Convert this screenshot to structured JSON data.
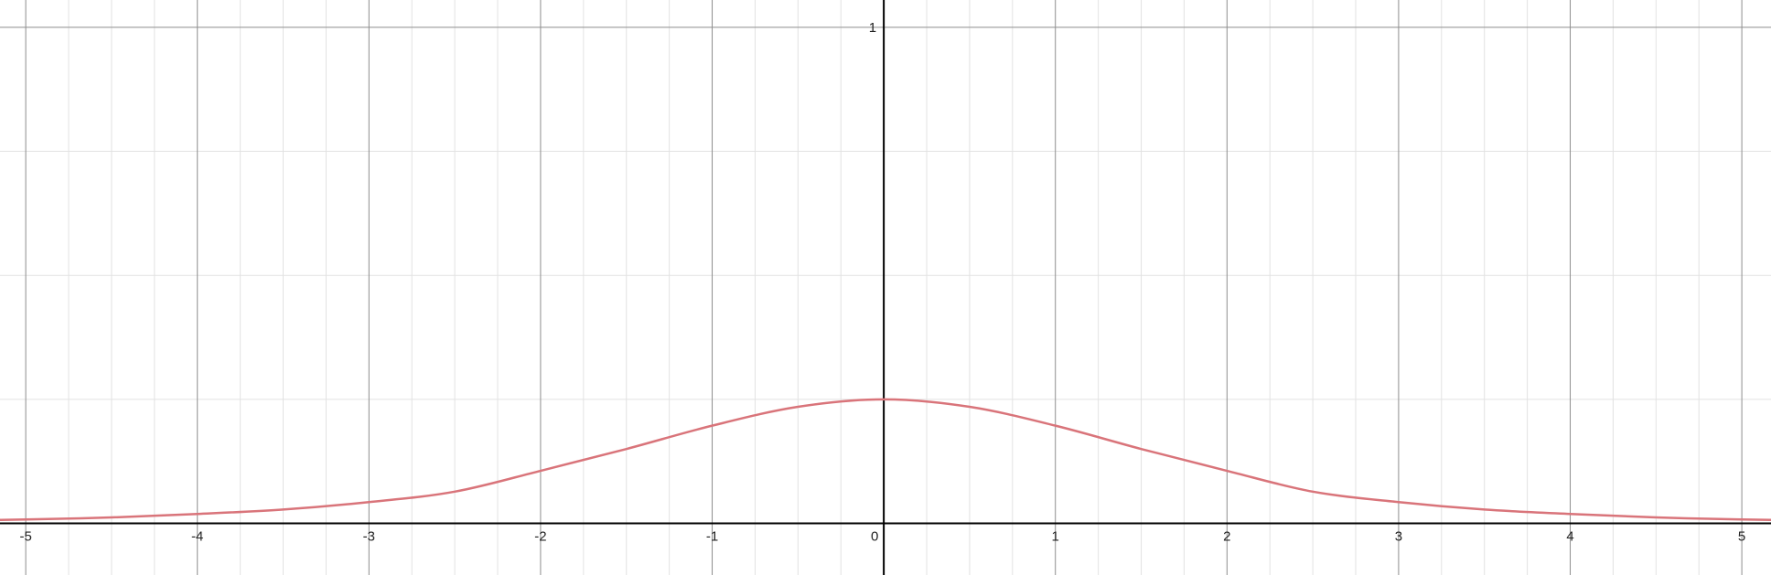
{
  "chart_data": {
    "type": "line",
    "xlim": [
      -5.15,
      5.17
    ],
    "ylim": [
      -0.104,
      1.055
    ],
    "grid": true,
    "minor_grid_x_step": 0.25,
    "minor_grid_y_step": 0.25,
    "major_grid_step": 1,
    "x_ticks": [
      -5,
      -4,
      -3,
      -2,
      -1,
      0,
      1,
      2,
      3,
      4,
      5
    ],
    "x_tick_labels": [
      "-5",
      "-4",
      "-3",
      "-2",
      "-1",
      "0",
      "1",
      "2",
      "3",
      "4",
      "5"
    ],
    "y_ticks": [
      1
    ],
    "y_tick_labels": [
      "1"
    ],
    "series": [
      {
        "color": "#d9747a",
        "x": [
          -5.15,
          -5,
          -4.5,
          -4,
          -3.5,
          -3,
          -2.5,
          -2,
          -1.5,
          -1,
          -0.5,
          0,
          0.5,
          1,
          1.5,
          2,
          2.5,
          3,
          3.5,
          4,
          4.5,
          5,
          5.17
        ],
        "y": [
          0.007,
          0.008,
          0.012,
          0.019,
          0.028,
          0.043,
          0.064,
          0.106,
          0.15,
          0.197,
          0.235,
          0.25,
          0.235,
          0.197,
          0.15,
          0.106,
          0.064,
          0.043,
          0.028,
          0.019,
          0.012,
          0.008,
          0.007
        ]
      }
    ]
  },
  "colors": {
    "background": "#ffffff",
    "axis": "#000000",
    "major_grid": "#8e8e8e",
    "minor_grid": "#e2e2e2",
    "curve": "#d9747a"
  }
}
